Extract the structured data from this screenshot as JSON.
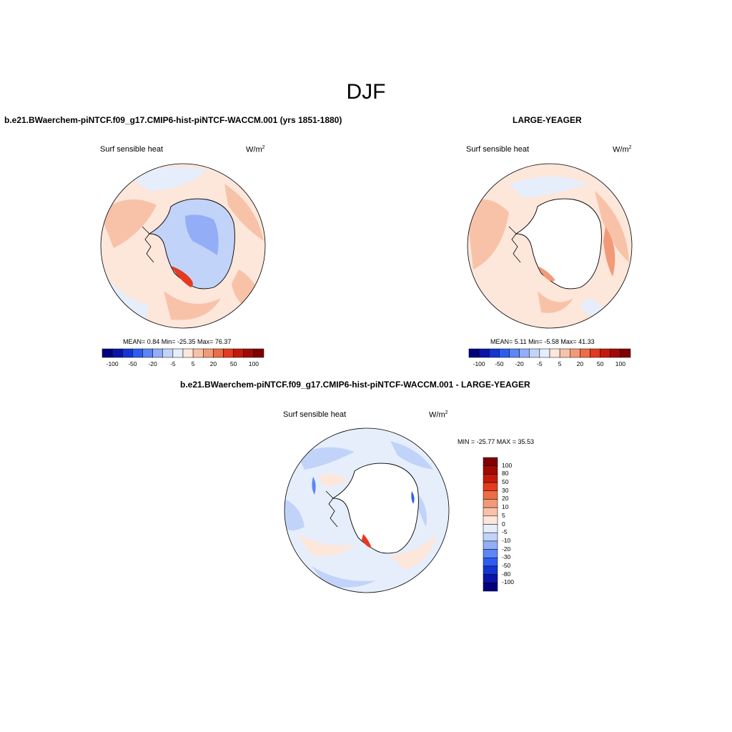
{
  "page": {
    "title": "DJF"
  },
  "panels": [
    {
      "title": "b.e21.BWaerchem-piNTCF.f09_g17.CMIP6-hist-piNTCF-WACCM.001 (yrs 1851-1880)",
      "variable": "Surf sensible heat",
      "units": "W/m",
      "units_exp": "2",
      "stats": "MEAN=   0.84  Min= -25.35  Max=  76.37"
    },
    {
      "title": "LARGE-YEAGER",
      "variable": "Surf sensible heat",
      "units": "W/m",
      "units_exp": "2",
      "stats": "MEAN=   5.11  Min=  -5.58  Max=  41.33"
    },
    {
      "title": "b.e21.BWaerchem-piNTCF.f09_g17.CMIP6-hist-piNTCF-WACCM.001 - LARGE-YEAGER",
      "variable": "Surf sensible heat",
      "units": "W/m",
      "units_exp": "2",
      "stats": "MIN = -25.77 MAX =  35.53"
    }
  ],
  "colorbar_horizontal": {
    "colors": [
      "#00007f",
      "#0a14a8",
      "#1435d2",
      "#2f5cf0",
      "#5d85f5",
      "#93adf7",
      "#c2d3f9",
      "#e6eefc",
      "#fde6da",
      "#f8c2a9",
      "#f29a77",
      "#ec6d46",
      "#e43a1f",
      "#c41a0c",
      "#a00a05",
      "#800000"
    ],
    "labels": [
      "-100",
      "-50",
      "-20",
      "-5",
      "5",
      "20",
      "50",
      "100"
    ]
  },
  "colorbar_vertical": {
    "colors": [
      "#800000",
      "#a00a05",
      "#c41a0c",
      "#e43a1f",
      "#ec6d46",
      "#f29a77",
      "#f8c2a9",
      "#fde6da",
      "#e6eefc",
      "#c2d3f9",
      "#93adf7",
      "#5d85f5",
      "#2f5cf0",
      "#1435d2",
      "#0a14a8",
      "#00007f"
    ],
    "labels": [
      "100",
      "80",
      "50",
      "30",
      "20",
      "10",
      "5",
      "0",
      "-5",
      "-10",
      "-20",
      "-30",
      "-50",
      "-80",
      "-100"
    ]
  },
  "map_colors": {
    "warm_light": "#fde6da",
    "warm_mid": "#f8c2a9",
    "warm_strong": "#f29a77",
    "warm_red": "#e43a1f",
    "cool_light": "#e6eefc",
    "cool_mid": "#c2d3f9",
    "cool_strong": "#93adf7",
    "cool_deep": "#5d85f5",
    "land_blank": "#ffffff"
  }
}
